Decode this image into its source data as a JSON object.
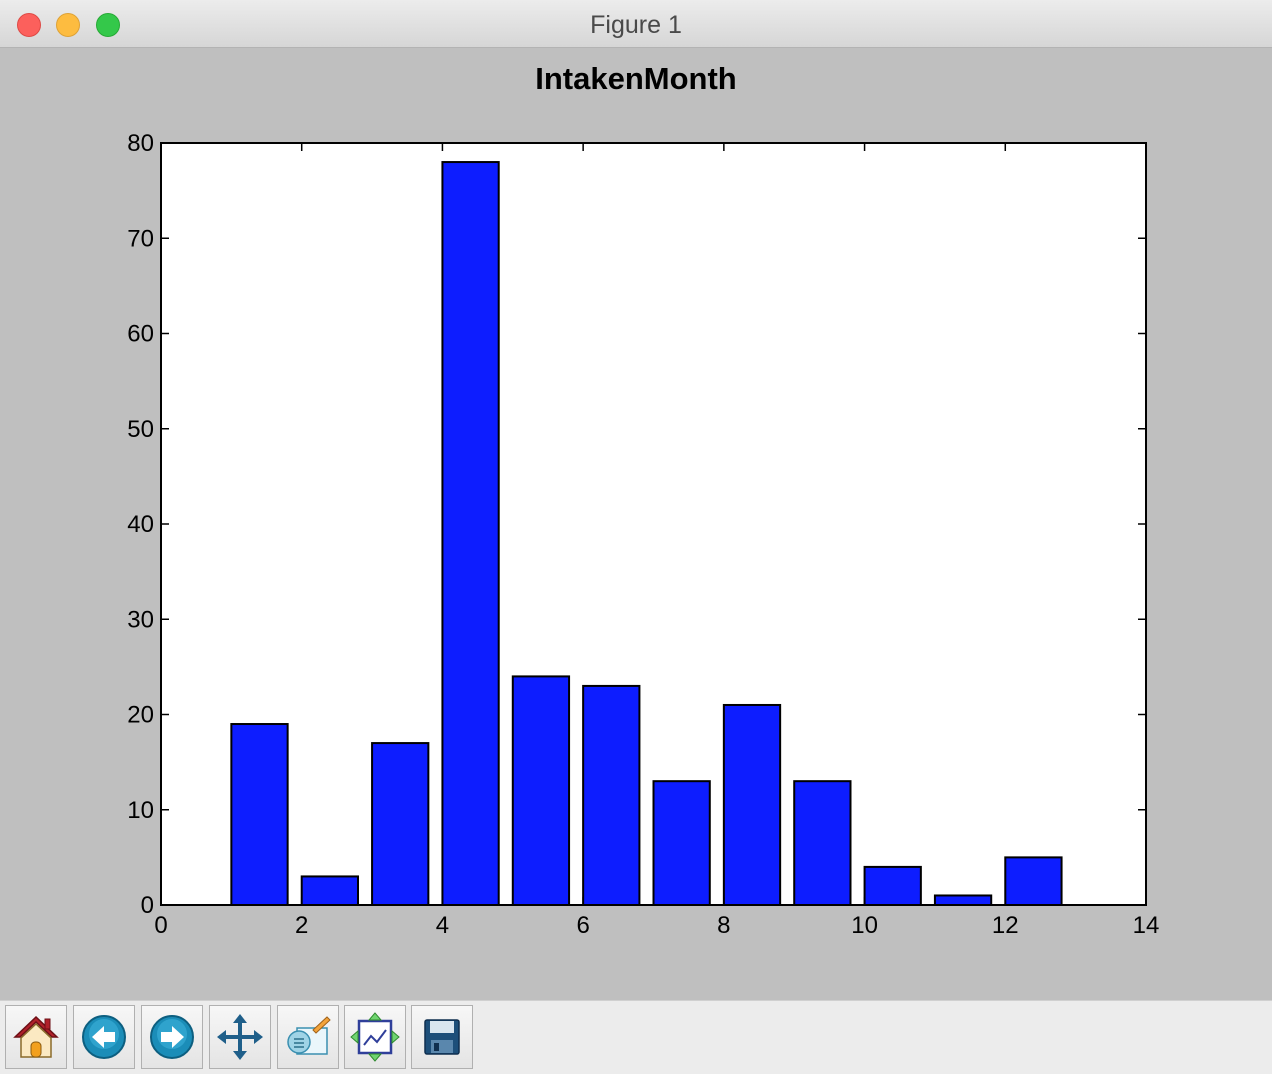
{
  "window": {
    "title": "Figure 1"
  },
  "toolbar": {
    "buttons": [
      {
        "name": "home-button",
        "icon": "home-icon"
      },
      {
        "name": "back-button",
        "icon": "back-arrow-icon"
      },
      {
        "name": "forward-button",
        "icon": "forward-arrow-icon"
      },
      {
        "name": "pan-button",
        "icon": "pan-arrows-icon"
      },
      {
        "name": "zoom-rect-button",
        "icon": "zoom-to-rect-icon"
      },
      {
        "name": "subplots-button",
        "icon": "configure-subplots-icon"
      },
      {
        "name": "save-button",
        "icon": "floppy-disk-icon"
      }
    ]
  },
  "colors": {
    "bar_fill": "#0d1dff",
    "bar_edge": "#000000",
    "figure_background": "#bfbfbf",
    "axes_background": "#ffffff"
  },
  "chart_data": {
    "type": "bar",
    "title": "IntakenMonth",
    "xlabel": "",
    "ylabel": "",
    "x": [
      1,
      2,
      3,
      4,
      5,
      6,
      7,
      8,
      9,
      10,
      11,
      12
    ],
    "values": [
      19,
      3,
      17,
      78,
      24,
      23,
      13,
      21,
      13,
      4,
      1,
      5
    ],
    "bar_width": 0.8,
    "xlim": [
      0,
      14
    ],
    "ylim": [
      0,
      80
    ],
    "xticks": [
      "0",
      "2",
      "4",
      "6",
      "8",
      "10",
      "12",
      "14"
    ],
    "yticks": [
      "0",
      "10",
      "20",
      "30",
      "40",
      "50",
      "60",
      "70",
      "80"
    ],
    "grid": false,
    "legend": "none"
  }
}
